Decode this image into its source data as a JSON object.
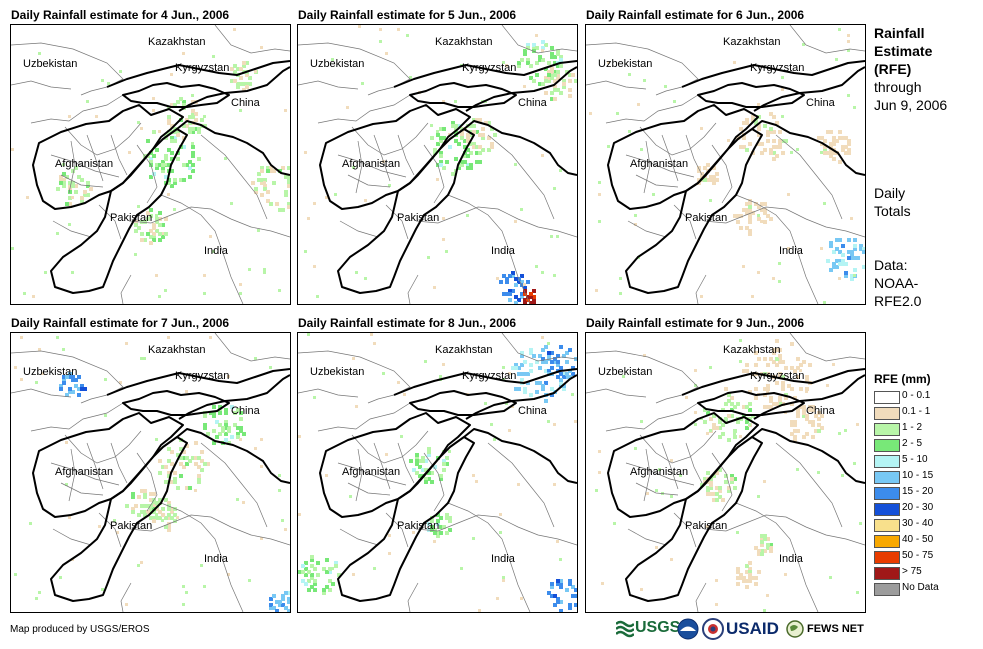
{
  "panels": [
    {
      "title": "Daily Rainfall estimate for 4 Jun., 2006"
    },
    {
      "title": "Daily Rainfall estimate for 5 Jun., 2006"
    },
    {
      "title": "Daily Rainfall estimate for 6 Jun., 2006"
    },
    {
      "title": "Daily Rainfall estimate for 7 Jun., 2006"
    },
    {
      "title": "Daily Rainfall estimate for 8 Jun., 2006"
    },
    {
      "title": "Daily Rainfall estimate for 9 Jun., 2006"
    }
  ],
  "map_labels": {
    "kazakhstan": "Kazakhstan",
    "uzbekistan": "Uzbekistan",
    "kyrgyzstan": "Kyrgyzstan",
    "china": "China",
    "afghanistan": "Afghanistan",
    "pakistan": "Pakistan",
    "india": "India"
  },
  "side": {
    "title_line1": "Rainfall",
    "title_line2": "Estimate",
    "title_line3": "(RFE)",
    "through": "through",
    "date": "Jun 9, 2006",
    "daily1": "Daily",
    "daily2": "Totals",
    "data1": "Data:",
    "data2": "NOAA-",
    "data3": "RFE2.0"
  },
  "legend": {
    "title": "RFE (mm)",
    "items": [
      {
        "label": "0 - 0.1",
        "color": "#ffffff"
      },
      {
        "label": "0.1 - 1",
        "color": "#f1dcbc"
      },
      {
        "label": "1 - 2",
        "color": "#b8f5a8"
      },
      {
        "label": "2 - 5",
        "color": "#78e878"
      },
      {
        "label": "5 - 10",
        "color": "#b4f4f4"
      },
      {
        "label": "10 - 15",
        "color": "#78c8f4"
      },
      {
        "label": "15 - 20",
        "color": "#3c8cec"
      },
      {
        "label": "20 - 30",
        "color": "#1450d8"
      },
      {
        "label": "30 - 40",
        "color": "#f8e08c"
      },
      {
        "label": "40 - 50",
        "color": "#f8a800"
      },
      {
        "label": "50 - 75",
        "color": "#e83c00"
      },
      {
        "label": "> 75",
        "color": "#a01818"
      },
      {
        "label": "No Data",
        "color": "#9c9c9c"
      }
    ]
  },
  "footer": {
    "credit": "Map produced by USGS/EROS"
  },
  "logos": {
    "usgs": "USGS",
    "usaid": "USAID",
    "fewsnet": "FEWS NET"
  }
}
